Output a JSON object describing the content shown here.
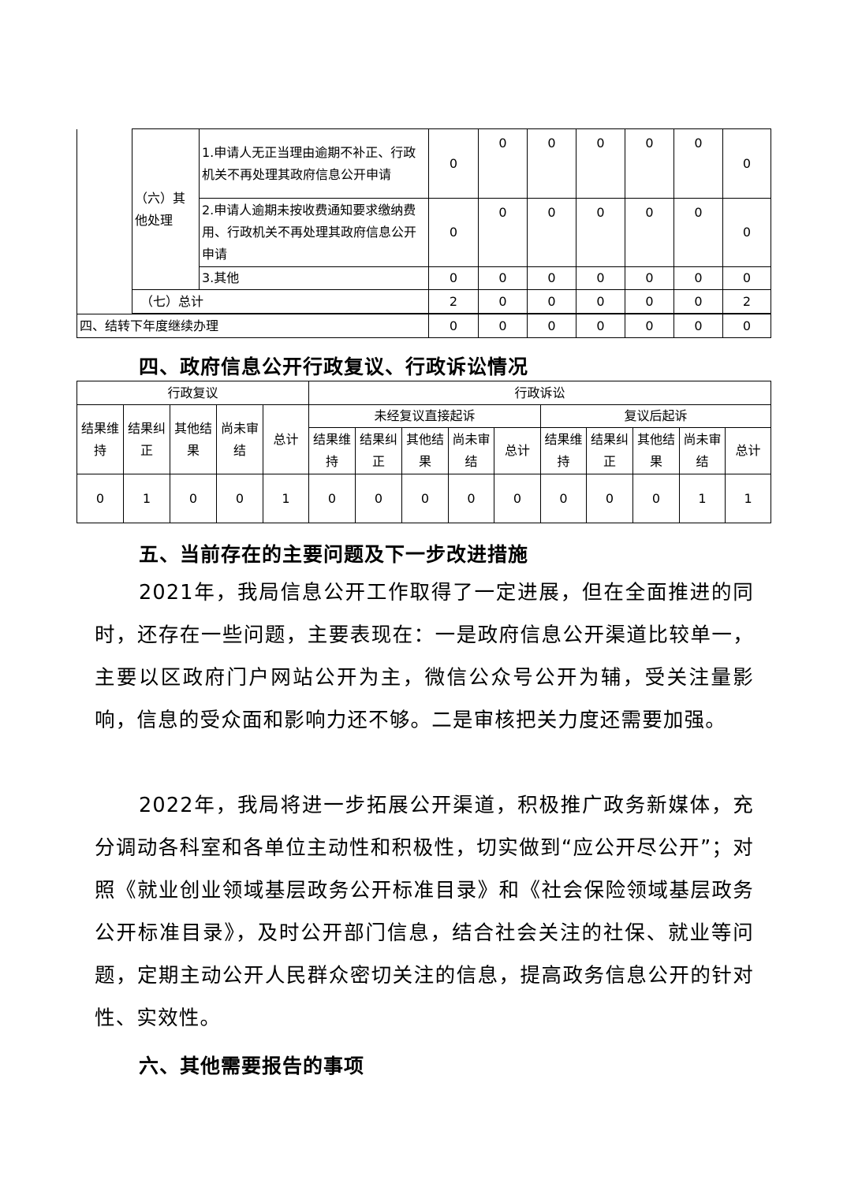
{
  "table1": {
    "group_label": "（六）其他处理",
    "rows": [
      {
        "label": "1.申请人无正当理由逾期不补正、行政机关不再处理其政府信息公开申请",
        "values": [
          "0",
          "0",
          "0",
          "0",
          "0",
          "0",
          "0"
        ]
      },
      {
        "label": "2.申请人逾期未按收费通知要求缴纳费用、行政机关不再处理其政府信息公开申请",
        "values": [
          "0",
          "0",
          "0",
          "0",
          "0",
          "0",
          "0"
        ]
      },
      {
        "label": "3.其他",
        "values": [
          "0",
          "0",
          "0",
          "0",
          "0",
          "0",
          "0"
        ]
      }
    ],
    "total": {
      "label": "（七）总计",
      "values": [
        "2",
        "0",
        "0",
        "0",
        "0",
        "0",
        "2"
      ]
    },
    "carry": {
      "label": "四、结转下年度继续办理",
      "values": [
        "0",
        "0",
        "0",
        "0",
        "0",
        "0",
        "0"
      ]
    }
  },
  "section4": {
    "heading": "四、政府信息公开行政复议、行政诉讼情况"
  },
  "table2": {
    "review": "行政复议",
    "litigation": "行政诉讼",
    "direct": "未经复议直接起诉",
    "after": "复议后起诉",
    "cols": [
      "结果维持",
      "结果纠正",
      "其他结果",
      "尚未审结",
      "总计"
    ],
    "values": [
      "0",
      "1",
      "0",
      "0",
      "1",
      "0",
      "0",
      "0",
      "0",
      "0",
      "0",
      "0",
      "0",
      "1",
      "1"
    ]
  },
  "section5": {
    "heading": "五、当前存在的主要问题及下一步改进措施",
    "p1": "2021年，我局信息公开工作取得了一定进展，但在全面推进的同时，还存在一些问题，主要表现在：一是政府信息公开渠道比较单一，主要以区政府门户网站公开为主，微信公众号公开为辅，受关注量影响，信息的受众面和影响力还不够。二是审核把关力度还需要加强。",
    "p2": "2022年，我局将进一步拓展公开渠道，积极推广政务新媒体，充分调动各科室和各单位主动性和积极性，切实做到“应公开尽公开”；对照《就业创业领域基层政务公开标准目录》和《社会保险领域基层政务公开标准目录》，及时公开部门信息，结合社会关注的社保、就业等问题，定期主动公开人民群众密切关注的信息，提高政务信息公开的针对性、实效性。"
  },
  "section6": {
    "heading": "六、其他需要报告的事项"
  }
}
